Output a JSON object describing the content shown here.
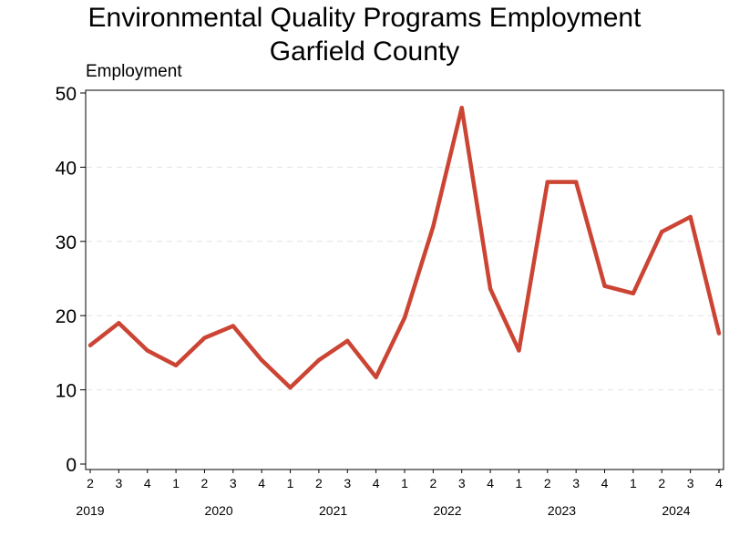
{
  "chart_data": {
    "type": "line",
    "title": "Environmental Quality Programs Employment",
    "subtitle": "Garfield County",
    "ylabel": "Employment",
    "xlabel": "",
    "ylim": [
      0,
      50
    ],
    "yticks": [
      0,
      10,
      20,
      30,
      40,
      50
    ],
    "grid": "horizontal dashed",
    "series_color": "#cc4433",
    "x": [
      {
        "quarter": "2",
        "year": "2019"
      },
      {
        "quarter": "3",
        "year": "2019"
      },
      {
        "quarter": "4",
        "year": "2019"
      },
      {
        "quarter": "1",
        "year": "2020"
      },
      {
        "quarter": "2",
        "year": "2020"
      },
      {
        "quarter": "3",
        "year": "2020"
      },
      {
        "quarter": "4",
        "year": "2020"
      },
      {
        "quarter": "1",
        "year": "2021"
      },
      {
        "quarter": "2",
        "year": "2021"
      },
      {
        "quarter": "3",
        "year": "2021"
      },
      {
        "quarter": "4",
        "year": "2021"
      },
      {
        "quarter": "1",
        "year": "2022"
      },
      {
        "quarter": "2",
        "year": "2022"
      },
      {
        "quarter": "3",
        "year": "2022"
      },
      {
        "quarter": "4",
        "year": "2022"
      },
      {
        "quarter": "1",
        "year": "2023"
      },
      {
        "quarter": "2",
        "year": "2023"
      },
      {
        "quarter": "3",
        "year": "2023"
      },
      {
        "quarter": "4",
        "year": "2023"
      },
      {
        "quarter": "1",
        "year": "2024"
      },
      {
        "quarter": "2",
        "year": "2024"
      },
      {
        "quarter": "3",
        "year": "2024"
      },
      {
        "quarter": "4",
        "year": "2024"
      }
    ],
    "series": [
      {
        "name": "Employment",
        "values": [
          16,
          19,
          15.3,
          13.3,
          17,
          18.6,
          14,
          10.3,
          14,
          16.6,
          11.7,
          19.7,
          32,
          48,
          23.6,
          15.3,
          38,
          38,
          24,
          23,
          31.3,
          33.3,
          17.6
        ]
      }
    ],
    "year_labels": [
      "2019",
      "2020",
      "2021",
      "2022",
      "2023",
      "2024"
    ]
  }
}
